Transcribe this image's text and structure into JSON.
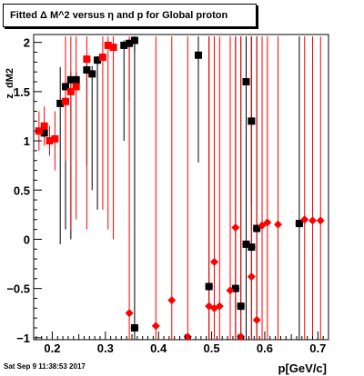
{
  "title": "Fitted Δ M^2 versus η and p for Global proton",
  "timestamp": "Sat Sep  9 11:38:53 2017",
  "chart_data": {
    "type": "scatter",
    "title": "Fitted Δ M^2 versus η and p for Global proton",
    "xlabel": "p[GeV/c]",
    "ylabel": "z_dM2",
    "xlim": [
      0.165,
      0.72
    ],
    "ylim": [
      -1.02,
      2.08
    ],
    "xticks": [
      0.2,
      0.3,
      0.4,
      0.5,
      0.6,
      0.7
    ],
    "xtick_labels": [
      "0.2",
      "0.3",
      "0.4",
      "0.5",
      "0.6",
      "0.7"
    ],
    "yticks": [
      -1,
      -0.5,
      0,
      0.5,
      1,
      1.5,
      2
    ],
    "ytick_labels": [
      "−1",
      "−0.5",
      "0",
      "0.5",
      "1",
      "1.5",
      "2"
    ],
    "series": [
      {
        "color": "#000000",
        "marker": "square",
        "points": [
          {
            "x": 0.185,
            "y": 1.08,
            "lo": 1.03,
            "hi": 1.13
          },
          {
            "x": 0.215,
            "y": 1.38,
            "lo": -0.05,
            "hi": 1.75
          },
          {
            "x": 0.225,
            "y": 1.55,
            "lo": 0.1,
            "hi": 1.62
          },
          {
            "x": 0.235,
            "y": 1.62,
            "lo": 0.0,
            "hi": 1.7
          },
          {
            "x": 0.245,
            "y": 1.62,
            "lo": 1.55,
            "hi": 1.7
          },
          {
            "x": 0.265,
            "y": 1.72,
            "lo": 0.75,
            "hi": 1.82
          },
          {
            "x": 0.275,
            "y": 1.68,
            "lo": 0.5,
            "hi": 1.76
          },
          {
            "x": 0.285,
            "y": 1.82,
            "lo": 0.3,
            "hi": 1.86
          },
          {
            "x": 0.335,
            "y": 1.97,
            "lo": 1.0,
            "hi": 2.02
          },
          {
            "x": 0.345,
            "y": 1.99,
            "lo": 1.4,
            "hi": 2.04
          },
          {
            "x": 0.355,
            "y": 2.02,
            "lo": 1.9,
            "hi": 2.06
          },
          {
            "x": 0.475,
            "y": 1.87,
            "lo": 0.78,
            "hi": 2.06
          },
          {
            "x": 0.565,
            "y": 1.6,
            "lo": 0.4,
            "hi": 2.06
          },
          {
            "x": 0.575,
            "y": 1.2,
            "lo": 0.35,
            "hi": 2.06
          },
          {
            "x": 0.355,
            "y": -0.9,
            "lo": -1.02,
            "hi": 2.06
          },
          {
            "x": 0.495,
            "y": -0.48,
            "lo": -1.02,
            "hi": 2.06
          },
          {
            "x": 0.545,
            "y": -0.5,
            "lo": -1.02,
            "hi": 2.06
          },
          {
            "x": 0.555,
            "y": -0.68,
            "lo": -1.02,
            "hi": 2.06
          },
          {
            "x": 0.565,
            "y": -0.05,
            "lo": -1.02,
            "hi": 2.06
          },
          {
            "x": 0.575,
            "y": -0.08,
            "lo": -1.02,
            "hi": 2.06
          },
          {
            "x": 0.585,
            "y": 0.11,
            "lo": -1.02,
            "hi": 2.06
          },
          {
            "x": 0.665,
            "y": 0.16,
            "lo": -1.02,
            "hi": 2.06
          }
        ]
      },
      {
        "color": "#ff0000",
        "marker": "square",
        "points": [
          {
            "x": 0.175,
            "y": 1.1,
            "lo": 0.9,
            "hi": 1.3
          },
          {
            "x": 0.185,
            "y": 1.15,
            "lo": 0.95,
            "hi": 1.35
          },
          {
            "x": 0.195,
            "y": 1.0,
            "lo": 0.85,
            "hi": 1.15
          },
          {
            "x": 0.205,
            "y": 1.02,
            "lo": 0.7,
            "hi": 1.3
          },
          {
            "x": 0.225,
            "y": 1.4,
            "lo": 0.8,
            "hi": 2.06
          },
          {
            "x": 0.235,
            "y": 1.5,
            "lo": 0.1,
            "hi": 2.06
          },
          {
            "x": 0.245,
            "y": 1.55,
            "lo": 0.2,
            "hi": 2.06
          },
          {
            "x": 0.265,
            "y": 1.83,
            "lo": 0.1,
            "hi": 2.06
          },
          {
            "x": 0.295,
            "y": 1.85,
            "lo": 0.3,
            "hi": 2.06
          },
          {
            "x": 0.305,
            "y": 1.97,
            "lo": 0.1,
            "hi": 2.06
          },
          {
            "x": 0.315,
            "y": 1.95,
            "lo": 0.0,
            "hi": 2.06
          }
        ]
      },
      {
        "color": "#000000",
        "marker": "diamond",
        "points": [
          {
            "x": 0.355,
            "y": -0.9
          },
          {
            "x": 0.495,
            "y": -0.48
          },
          {
            "x": 0.545,
            "y": -0.5
          },
          {
            "x": 0.555,
            "y": -0.68
          },
          {
            "x": 0.565,
            "y": -0.05
          },
          {
            "x": 0.575,
            "y": -0.08
          },
          {
            "x": 0.585,
            "y": 0.11
          },
          {
            "x": 0.665,
            "y": 0.16
          }
        ]
      },
      {
        "color": "#ff0000",
        "marker": "diamond",
        "points": [
          {
            "x": 0.345,
            "y": -0.75,
            "lo": -1.02,
            "hi": 2.06
          },
          {
            "x": 0.395,
            "y": -0.88,
            "lo": -1.02,
            "hi": 2.06
          },
          {
            "x": 0.425,
            "y": -0.62,
            "lo": -1.02,
            "hi": 2.06
          },
          {
            "x": 0.455,
            "y": -0.99,
            "lo": -1.02,
            "hi": 2.06
          },
          {
            "x": 0.495,
            "y": -0.68,
            "lo": -1.02,
            "hi": 2.06
          },
          {
            "x": 0.505,
            "y": -0.7,
            "lo": -1.02,
            "hi": 2.06
          },
          {
            "x": 0.505,
            "y": -0.23,
            "lo": -1.02,
            "hi": 2.06
          },
          {
            "x": 0.515,
            "y": -0.68,
            "lo": -1.02,
            "hi": 2.06
          },
          {
            "x": 0.535,
            "y": -0.52,
            "lo": -1.02,
            "hi": 2.06
          },
          {
            "x": 0.545,
            "y": 0.12,
            "lo": -1.02,
            "hi": 2.06
          },
          {
            "x": 0.555,
            "y": -0.99,
            "lo": -1.02,
            "hi": 2.06
          },
          {
            "x": 0.575,
            "y": -0.38,
            "lo": -1.02,
            "hi": 2.06
          },
          {
            "x": 0.585,
            "y": -0.82,
            "lo": -1.02,
            "hi": 2.06
          },
          {
            "x": 0.595,
            "y": 0.14,
            "lo": -1.02,
            "hi": 2.06
          },
          {
            "x": 0.605,
            "y": 0.17,
            "lo": -1.02,
            "hi": 2.06
          },
          {
            "x": 0.625,
            "y": 0.15,
            "lo": -1.02,
            "hi": 2.06
          },
          {
            "x": 0.675,
            "y": 0.2,
            "lo": -1.02,
            "hi": 2.06
          },
          {
            "x": 0.69,
            "y": 0.19,
            "lo": -1.02,
            "hi": 2.06
          },
          {
            "x": 0.705,
            "y": 0.19,
            "lo": -1.02,
            "hi": 2.06
          }
        ]
      }
    ]
  }
}
